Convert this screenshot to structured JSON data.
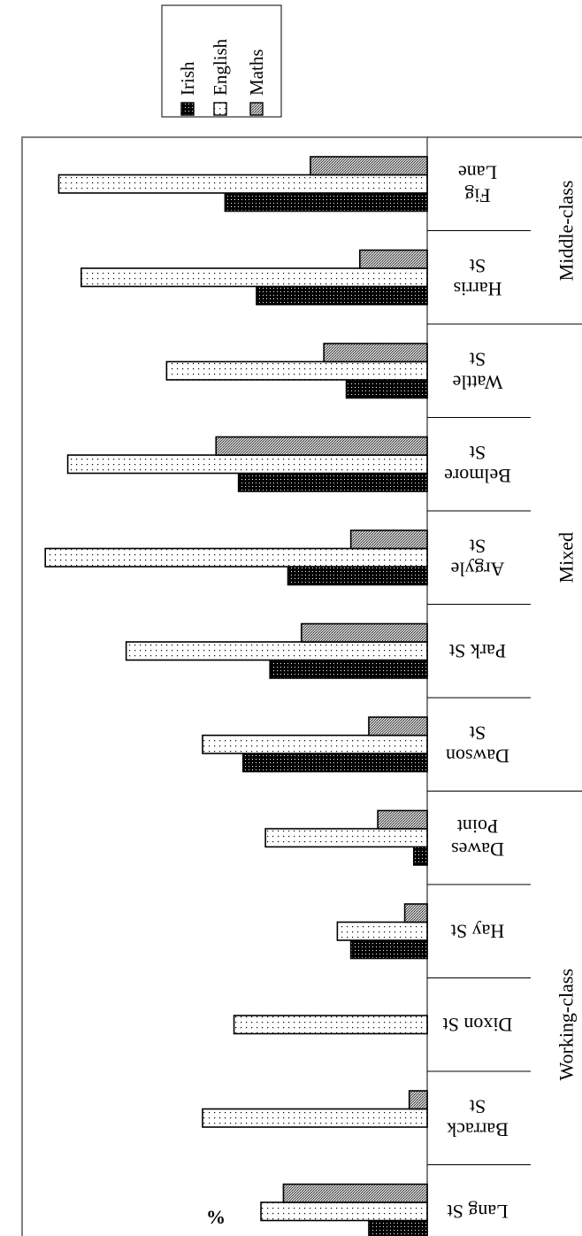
{
  "chart_data": {
    "type": "bar",
    "title": "",
    "xlabel": "",
    "ylabel": "%",
    "ylim": [
      0,
      90
    ],
    "ticks": [
      "0",
      "10",
      "20",
      "30",
      "40",
      "50",
      "60",
      "70",
      "80",
      "90"
    ],
    "categories": [
      "Lang St",
      "Barrack St",
      "Dixon St",
      "Hay St",
      "Dawes Point",
      "Dawson St",
      "Park St",
      "Argyle St",
      "Belmore St",
      "Wattle St",
      "Harris St",
      "Fig Lane"
    ],
    "groups": [
      {
        "label": "Working-class",
        "categories": [
          "Lang St",
          "Barrack St",
          "Dixon St",
          "Hay St",
          "Dawes Point"
        ]
      },
      {
        "label": "Mixed",
        "categories": [
          "Dawson St",
          "Park St",
          "Argyle St",
          "Belmore St",
          "Wattle St"
        ]
      },
      {
        "label": "Middle-class",
        "categories": [
          "Harris St",
          "Fig Lane"
        ]
      }
    ],
    "series": [
      {
        "name": "Irish",
        "color": "#000000",
        "values": [
          13,
          0,
          0,
          17,
          3,
          41,
          35,
          31,
          42,
          18,
          38,
          45
        ]
      },
      {
        "name": "English",
        "color": "#ffffff",
        "values": [
          37,
          50,
          43,
          20,
          36,
          50,
          67,
          85,
          80,
          58,
          77,
          82
        ]
      },
      {
        "name": "Maths",
        "color": "#9a9a9a",
        "values": [
          32,
          4,
          0,
          5,
          11,
          13,
          28,
          17,
          47,
          23,
          15,
          26
        ]
      }
    ],
    "legend_position": "top-right",
    "orientation": "rotated",
    "grid": false
  }
}
